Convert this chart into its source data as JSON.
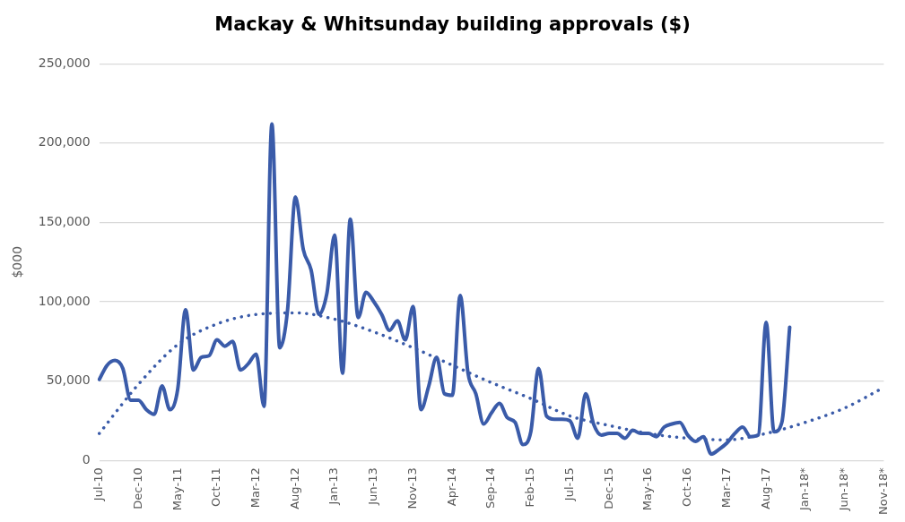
{
  "chart_data": {
    "type": "line",
    "title": "Mackay & Whitsunday building approvals ($)",
    "ylabel": "$000",
    "categories": [
      "Jul-10",
      null,
      null,
      null,
      null,
      "Dec-10",
      null,
      null,
      null,
      null,
      "May-11",
      null,
      null,
      null,
      null,
      "Oct-11",
      null,
      null,
      null,
      null,
      "Mar-12",
      null,
      null,
      null,
      null,
      "Aug-12",
      null,
      null,
      null,
      null,
      "Jan-13",
      null,
      null,
      null,
      null,
      "Jun-13",
      null,
      null,
      null,
      null,
      "Nov-13",
      null,
      null,
      null,
      null,
      "Apr-14",
      null,
      null,
      null,
      null,
      "Sep-14",
      null,
      null,
      null,
      null,
      "Feb-15",
      null,
      null,
      null,
      null,
      "Jul-15",
      null,
      null,
      null,
      null,
      "Dec-15",
      null,
      null,
      null,
      null,
      "May-16",
      null,
      null,
      null,
      null,
      "Oct-16",
      null,
      null,
      null,
      null,
      "Mar-17",
      null,
      null,
      null,
      null,
      "Aug-17",
      null,
      null,
      null,
      null,
      "Jan-18*",
      null,
      null,
      null,
      null,
      "Jun-18*",
      null,
      null,
      null,
      null,
      "Nov-18*"
    ],
    "series": [
      {
        "color": "#3a5ba9",
        "line_style": "solid",
        "values": [
          51000,
          60000,
          63000,
          58000,
          38000,
          38000,
          32000,
          29000,
          47000,
          32000,
          45000,
          95000,
          57000,
          65000,
          66000,
          76000,
          72000,
          75000,
          57000,
          61000,
          67000,
          34000,
          212000,
          71000,
          95000,
          166000,
          133000,
          120000,
          92000,
          105000,
          142000,
          55000,
          152000,
          90000,
          106000,
          100000,
          92000,
          82000,
          88000,
          76000,
          97000,
          32000,
          47000,
          65000,
          42000,
          41000,
          104000,
          55000,
          42000,
          23000,
          30000,
          36000,
          27000,
          24000,
          10000,
          18000,
          58000,
          28000,
          26000,
          26000,
          25000,
          14000,
          42000,
          23000,
          16000,
          17000,
          17000,
          14000,
          19000,
          17000,
          17000,
          15000,
          21000,
          23000,
          24000,
          16000,
          12000,
          15000,
          4000,
          7000,
          11000,
          17000,
          21000,
          15000,
          16000,
          87000,
          18000,
          24000,
          84000,
          null,
          null,
          null,
          null,
          null,
          null,
          null,
          null,
          null,
          null,
          null,
          null
        ]
      },
      {
        "type": "line",
        "color": "#3a5ba9",
        "line_style": "dotted",
        "x": [
          "Jul-10",
          "Dec-10",
          "May-11",
          "Oct-11",
          "Mar-12",
          "Aug-12",
          "Jan-13",
          "Jun-13",
          "Nov-13",
          "Apr-14",
          "Sep-14",
          "Feb-15",
          "Jul-15",
          "Dec-15",
          "May-16",
          "Oct-16",
          "Mar-17",
          "Aug-17",
          "Jan-18*",
          "Jun-18*",
          "Nov-18*"
        ],
        "values": [
          17000,
          48000,
          73000,
          86000,
          92000,
          93000,
          89000,
          81000,
          71000,
          60000,
          49000,
          39000,
          28000,
          22000,
          17000,
          14000,
          13000,
          17000,
          24000,
          33000,
          46000
        ]
      }
    ],
    "ylim": [
      0,
      250000
    ],
    "yticks": [
      0,
      {
        "value": 50000,
        "label": "50,000"
      },
      {
        "value": 100000,
        "label": "100,000"
      },
      {
        "value": 150000,
        "label": "150,000"
      },
      {
        "value": 200000,
        "label": "200,000"
      },
      {
        "value": 250000,
        "label": "250,000"
      }
    ],
    "grid": "y",
    "legend": false,
    "marker": "none"
  }
}
